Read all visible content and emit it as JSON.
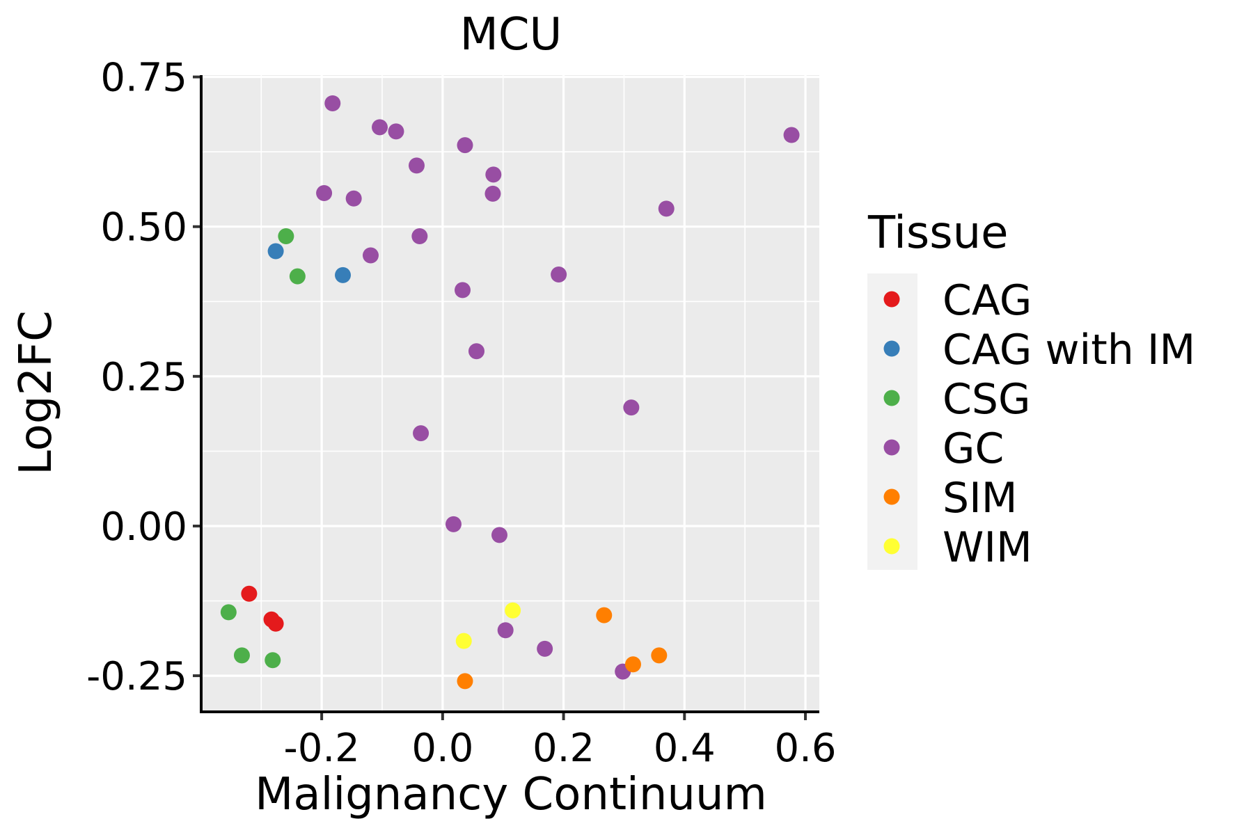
{
  "chart_data": {
    "type": "scatter",
    "title": "MCU",
    "xlabel": "Malignancy Continuum",
    "ylabel": "Log2FC",
    "xlim": [
      -0.397,
      0.623
    ],
    "ylim": [
      -0.308,
      0.753
    ],
    "x_ticks": [
      -0.2,
      0.0,
      0.2,
      0.4,
      0.6
    ],
    "x_tick_labels": [
      "-0.2",
      "0.0",
      "0.2",
      "0.4",
      "0.6"
    ],
    "x_minor_gridlines": [
      -0.3,
      -0.1,
      0.1,
      0.3,
      0.5
    ],
    "y_ticks": [
      -0.25,
      0.0,
      0.25,
      0.5,
      0.75
    ],
    "y_tick_labels": [
      "-0.25",
      "0.00",
      "0.25",
      "0.50",
      "0.75"
    ],
    "y_minor_gridlines": [
      -0.125,
      0.125,
      0.375,
      0.625
    ],
    "grid": true,
    "legend": {
      "title": "Tissue",
      "placement": "right",
      "entries": [
        {
          "label": "CAG",
          "color": "#E41A1C"
        },
        {
          "label": "CAG with IM",
          "color": "#377EB8"
        },
        {
          "label": "CSG",
          "color": "#4DAF4A"
        },
        {
          "label": "GC",
          "color": "#984EA3"
        },
        {
          "label": "SIM",
          "color": "#FF7F00"
        },
        {
          "label": "WIM",
          "color": "#FFFF33"
        }
      ]
    },
    "series": [
      {
        "name": "CAG",
        "color": "#E41A1C",
        "points": [
          {
            "x": -0.32,
            "y": -0.113
          },
          {
            "x": -0.283,
            "y": -0.156
          },
          {
            "x": -0.276,
            "y": -0.163
          }
        ]
      },
      {
        "name": "CAG with IM",
        "color": "#377EB8",
        "points": [
          {
            "x": -0.276,
            "y": 0.459
          },
          {
            "x": -0.165,
            "y": 0.419
          }
        ]
      },
      {
        "name": "CSG",
        "color": "#4DAF4A",
        "points": [
          {
            "x": -0.259,
            "y": 0.484
          },
          {
            "x": -0.24,
            "y": 0.417
          },
          {
            "x": -0.354,
            "y": -0.144
          },
          {
            "x": -0.332,
            "y": -0.216
          },
          {
            "x": -0.281,
            "y": -0.224
          }
        ]
      },
      {
        "name": "GC",
        "color": "#984EA3",
        "points": [
          {
            "x": -0.182,
            "y": 0.706
          },
          {
            "x": -0.104,
            "y": 0.666
          },
          {
            "x": -0.077,
            "y": 0.659
          },
          {
            "x": 0.037,
            "y": 0.636
          },
          {
            "x": 0.577,
            "y": 0.653
          },
          {
            "x": -0.043,
            "y": 0.602
          },
          {
            "x": 0.084,
            "y": 0.587
          },
          {
            "x": 0.083,
            "y": 0.555
          },
          {
            "x": -0.196,
            "y": 0.556
          },
          {
            "x": -0.147,
            "y": 0.547
          },
          {
            "x": 0.37,
            "y": 0.53
          },
          {
            "x": -0.038,
            "y": 0.484
          },
          {
            "x": -0.119,
            "y": 0.452
          },
          {
            "x": 0.192,
            "y": 0.42
          },
          {
            "x": 0.033,
            "y": 0.394
          },
          {
            "x": 0.056,
            "y": 0.292
          },
          {
            "x": 0.312,
            "y": 0.198
          },
          {
            "x": -0.036,
            "y": 0.155
          },
          {
            "x": 0.018,
            "y": 0.003
          },
          {
            "x": 0.094,
            "y": -0.015
          },
          {
            "x": 0.104,
            "y": -0.174
          },
          {
            "x": 0.169,
            "y": -0.205
          },
          {
            "x": 0.298,
            "y": -0.243
          }
        ]
      },
      {
        "name": "SIM",
        "color": "#FF7F00",
        "points": [
          {
            "x": 0.267,
            "y": -0.149
          },
          {
            "x": 0.315,
            "y": -0.231
          },
          {
            "x": 0.358,
            "y": -0.216
          },
          {
            "x": 0.037,
            "y": -0.259
          }
        ]
      },
      {
        "name": "WIM",
        "color": "#FFFF33",
        "points": [
          {
            "x": 0.116,
            "y": -0.141
          },
          {
            "x": 0.035,
            "y": -0.192
          }
        ]
      }
    ],
    "colors": {
      "panel_background": "#EBEBEB",
      "gridline": "#FFFFFF",
      "axis_line": "#000000",
      "legend_key_background": "#F2F2F2"
    }
  }
}
